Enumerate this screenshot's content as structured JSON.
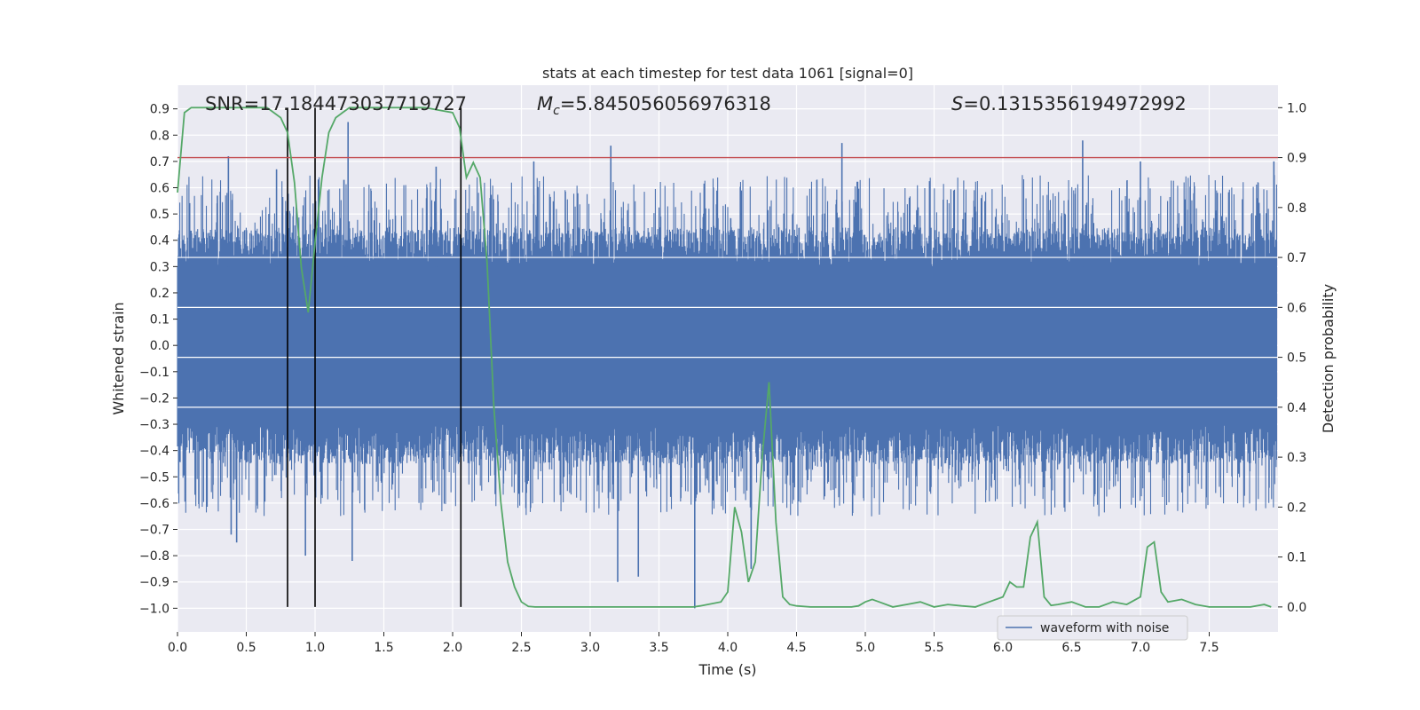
{
  "chart_data": {
    "type": "line",
    "title": "stats at each timestep for test data 1061 [signal=0]",
    "xlabel": "Time (s)",
    "ylabel_left": "Whitened strain",
    "ylabel_right": "Detection probability",
    "xlim": [
      0.0,
      8.0
    ],
    "ylim_left": [
      -1.09,
      0.99
    ],
    "ylim_right": [
      -0.05,
      1.045
    ],
    "x_ticks": [
      "0.0",
      "0.5",
      "1.0",
      "1.5",
      "2.0",
      "2.5",
      "3.0",
      "3.5",
      "4.0",
      "4.5",
      "5.0",
      "5.5",
      "6.0",
      "6.5",
      "7.0",
      "7.5"
    ],
    "y_ticks_left": [
      "0.9",
      "0.8",
      "0.7",
      "0.6",
      "0.5",
      "0.4",
      "0.3",
      "0.2",
      "0.1",
      "0.0",
      "−0.1",
      "−0.2",
      "−0.3",
      "−0.4",
      "−0.5",
      "−0.6",
      "−0.7",
      "−0.8",
      "−0.9",
      "−1.0"
    ],
    "y_ticks_right": [
      "1.0",
      "0.9",
      "0.8",
      "0.7",
      "0.6",
      "0.5",
      "0.4",
      "0.3",
      "0.2",
      "0.1",
      "0.0"
    ],
    "annotations": {
      "snr": "SNR=17.184473037719727",
      "mc_symbol": "M",
      "mc_sub": "c",
      "mc_value": "=5.845056056976318",
      "s_symbol": "S",
      "s_value": "=0.1315356194972992"
    },
    "threshold": {
      "value": 0.9,
      "axis": "right",
      "color": "#c44e52"
    },
    "vertical_markers": {
      "x": [
        0.8,
        1.0,
        2.06
      ],
      "color": "#000000"
    },
    "waveform": {
      "name": "waveform with noise",
      "color": "#4c72b0",
      "t_start": 0.0,
      "t_end": 7.99,
      "core_amplitude": 0.3,
      "peak_amplitude_range": [
        0.4,
        0.65
      ],
      "notable_spikes": [
        {
          "x": 0.29,
          "y": 0.57
        },
        {
          "x": 0.37,
          "y": 0.72
        },
        {
          "x": 0.39,
          "y": -0.72
        },
        {
          "x": 0.43,
          "y": -0.75
        },
        {
          "x": 0.72,
          "y": 0.67
        },
        {
          "x": 0.93,
          "y": -0.8
        },
        {
          "x": 1.21,
          "y": 0.63
        },
        {
          "x": 1.24,
          "y": 0.85
        },
        {
          "x": 1.27,
          "y": -0.82
        },
        {
          "x": 2.59,
          "y": 0.7
        },
        {
          "x": 3.15,
          "y": 0.76
        },
        {
          "x": 3.2,
          "y": -0.9
        },
        {
          "x": 3.35,
          "y": -0.88
        },
        {
          "x": 3.76,
          "y": -1.0
        },
        {
          "x": 4.83,
          "y": 0.77
        },
        {
          "x": 4.17,
          "y": -0.85
        },
        {
          "x": 6.58,
          "y": 0.78
        },
        {
          "x": 7.0,
          "y": 0.7
        },
        {
          "x": 7.97,
          "y": 0.7
        },
        {
          "x": 1.88,
          "y": 0.68
        }
      ]
    },
    "probability": {
      "name": "detection probability",
      "color": "#55a868",
      "x": [
        0.0,
        0.05,
        0.1,
        0.15,
        0.2,
        0.3,
        0.4,
        0.5,
        0.6,
        0.65,
        0.7,
        0.75,
        0.8,
        0.85,
        0.9,
        0.95,
        1.0,
        1.05,
        1.1,
        1.15,
        1.2,
        1.25,
        1.3,
        1.4,
        1.5,
        1.6,
        1.7,
        1.8,
        1.9,
        2.0,
        2.05,
        2.1,
        2.15,
        2.2,
        2.25,
        2.3,
        2.35,
        2.4,
        2.45,
        2.5,
        2.55,
        2.6,
        2.7,
        2.8,
        2.9,
        3.0,
        3.2,
        3.4,
        3.6,
        3.75,
        3.8,
        3.95,
        4.0,
        4.05,
        4.1,
        4.15,
        4.2,
        4.25,
        4.3,
        4.35,
        4.4,
        4.45,
        4.5,
        4.6,
        4.7,
        4.8,
        4.9,
        4.95,
        5.0,
        5.05,
        5.1,
        5.2,
        5.3,
        5.4,
        5.5,
        5.6,
        5.7,
        5.8,
        5.9,
        6.0,
        6.05,
        6.1,
        6.15,
        6.2,
        6.25,
        6.3,
        6.35,
        6.4,
        6.5,
        6.6,
        6.7,
        6.8,
        6.9,
        7.0,
        7.05,
        7.1,
        7.15,
        7.2,
        7.3,
        7.4,
        7.5,
        7.6,
        7.7,
        7.8,
        7.9,
        7.95
      ],
      "y": [
        0.83,
        0.99,
        1.0,
        1.0,
        1.0,
        1.0,
        1.0,
        1.0,
        1.0,
        1.0,
        0.99,
        0.98,
        0.95,
        0.85,
        0.68,
        0.59,
        0.73,
        0.86,
        0.95,
        0.98,
        0.99,
        1.0,
        1.0,
        1.0,
        1.0,
        1.0,
        1.0,
        1.0,
        0.995,
        0.99,
        0.96,
        0.86,
        0.89,
        0.86,
        0.69,
        0.4,
        0.21,
        0.09,
        0.04,
        0.01,
        0.001,
        0.0,
        0.0,
        0.0,
        0.0,
        0.0,
        0.0,
        0.0,
        0.0,
        0.0,
        0.002,
        0.01,
        0.03,
        0.2,
        0.15,
        0.05,
        0.09,
        0.3,
        0.45,
        0.17,
        0.02,
        0.005,
        0.002,
        0.0,
        0.0,
        0.0,
        0.0,
        0.002,
        0.01,
        0.015,
        0.01,
        0.0,
        0.005,
        0.01,
        0.0,
        0.005,
        0.002,
        0.0,
        0.01,
        0.02,
        0.05,
        0.04,
        0.04,
        0.14,
        0.17,
        0.02,
        0.003,
        0.005,
        0.01,
        0.0,
        0.0,
        0.01,
        0.005,
        0.02,
        0.12,
        0.13,
        0.03,
        0.01,
        0.015,
        0.005,
        0.0,
        0.0,
        0.0,
        0.0,
        0.005,
        0.0
      ]
    },
    "legend": {
      "label": "waveform with noise",
      "placement": "lower-right"
    }
  }
}
